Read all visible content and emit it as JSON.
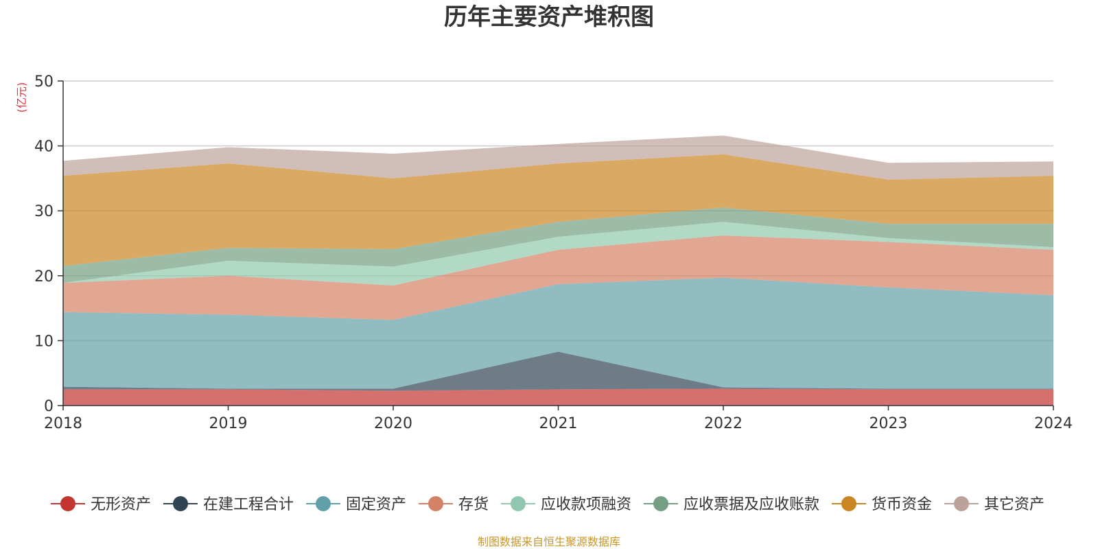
{
  "chart_data": {
    "type": "area",
    "stacked": true,
    "title": "历年主要资产堆积图",
    "ylabel": "(亿元)",
    "xlabel": "",
    "x": [
      "2018",
      "2019",
      "2020",
      "2021",
      "2022",
      "2023",
      "2024"
    ],
    "ylim": [
      0,
      50
    ],
    "yticks": [
      0,
      10,
      20,
      30,
      40,
      50
    ],
    "grid": true,
    "legend_position": "bottom",
    "series": [
      {
        "name": "无形资产",
        "color": "#c23531",
        "values": [
          2.5,
          2.5,
          2.3,
          2.5,
          2.6,
          2.5,
          2.5
        ]
      },
      {
        "name": "在建工程合计",
        "color": "#2f4554",
        "values": [
          0.4,
          0.1,
          0.3,
          5.8,
          0.2,
          0.1,
          0.1
        ]
      },
      {
        "name": "固定资产",
        "color": "#61a0a8",
        "values": [
          11.5,
          11.4,
          10.6,
          10.4,
          16.9,
          15.6,
          14.4
        ]
      },
      {
        "name": "存货",
        "color": "#d48265",
        "values": [
          4.5,
          6.0,
          5.3,
          5.3,
          6.5,
          7.0,
          7.0
        ]
      },
      {
        "name": "应收款项融资",
        "color": "#91c7ae",
        "values": [
          0.0,
          2.3,
          2.9,
          2.0,
          2.1,
          0.6,
          0.4
        ]
      },
      {
        "name": "应收票据及应收账款",
        "color": "#749f83",
        "values": [
          2.6,
          2.0,
          2.7,
          2.3,
          2.2,
          2.2,
          3.6
        ]
      },
      {
        "name": "货币资金",
        "color": "#ca8622",
        "values": [
          13.9,
          13.0,
          10.9,
          9.0,
          8.2,
          6.8,
          7.4
        ]
      },
      {
        "name": "其它资产",
        "color": "#bda29a",
        "values": [
          2.3,
          2.5,
          3.8,
          3.0,
          2.9,
          2.6,
          2.2
        ]
      }
    ]
  },
  "source_note": "制图数据来自恒生聚源数据库"
}
